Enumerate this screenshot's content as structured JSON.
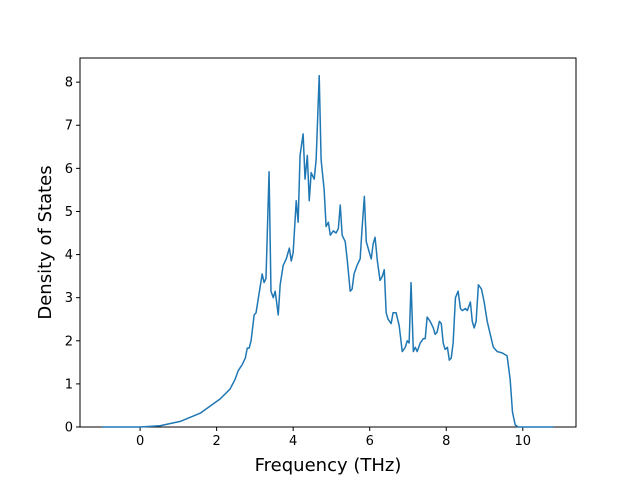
{
  "chart_data": {
    "type": "line",
    "x_label": "Frequency (THz)",
    "y_label": "Density of States",
    "series": [
      {
        "color": "#1f77b4",
        "x": [
          -0.99,
          0,
          0.52,
          1.05,
          1.57,
          2.09,
          2.35,
          2.48,
          2.56,
          2.67,
          2.75,
          2.8,
          2.85,
          2.9,
          2.98,
          3.03,
          3.11,
          3.19,
          3.24,
          3.29,
          3.37,
          3.42,
          3.48,
          3.53,
          3.61,
          3.66,
          3.74,
          3.82,
          3.9,
          3.95,
          4.0,
          4.08,
          4.13,
          4.18,
          4.26,
          4.31,
          4.37,
          4.42,
          4.47,
          4.55,
          4.6,
          4.68,
          4.73,
          4.81,
          4.86,
          4.92,
          4.97,
          5.05,
          5.12,
          5.18,
          5.23,
          5.28,
          5.36,
          5.41,
          5.49,
          5.54,
          5.59,
          5.67,
          5.75,
          5.8,
          5.86,
          5.91,
          5.99,
          6.04,
          6.09,
          6.14,
          6.2,
          6.27,
          6.33,
          6.38,
          6.43,
          6.48,
          6.56,
          6.61,
          6.69,
          6.77,
          6.85,
          6.93,
          6.98,
          7.03,
          7.08,
          7.14,
          7.19,
          7.24,
          7.32,
          7.4,
          7.45,
          7.5,
          7.58,
          7.66,
          7.71,
          7.76,
          7.82,
          7.87,
          7.92,
          7.97,
          8.03,
          8.08,
          8.13,
          8.18,
          8.24,
          8.31,
          8.37,
          8.42,
          8.5,
          8.55,
          8.63,
          8.68,
          8.73,
          8.78,
          8.84,
          8.92,
          8.99,
          9.07,
          9.15,
          9.23,
          9.33,
          9.46,
          9.59,
          9.67,
          9.73,
          9.8,
          9.88,
          10.8
        ],
        "values": [
          0,
          0,
          0.03,
          0.13,
          0.32,
          0.65,
          0.88,
          1.1,
          1.3,
          1.45,
          1.6,
          1.83,
          1.83,
          2.0,
          2.6,
          2.65,
          3.1,
          3.55,
          3.35,
          3.45,
          5.92,
          3.15,
          3.0,
          3.15,
          2.6,
          3.3,
          3.75,
          3.9,
          4.15,
          3.85,
          4.05,
          5.25,
          4.75,
          6.3,
          6.8,
          5.75,
          6.3,
          5.25,
          5.9,
          5.75,
          6.2,
          8.15,
          6.2,
          5.5,
          4.65,
          4.75,
          4.45,
          4.55,
          4.5,
          4.6,
          5.15,
          4.45,
          4.3,
          3.9,
          3.15,
          3.2,
          3.55,
          3.75,
          3.9,
          4.6,
          5.35,
          4.3,
          4.05,
          3.9,
          4.25,
          4.4,
          3.85,
          3.4,
          3.5,
          3.65,
          2.65,
          2.5,
          2.4,
          2.65,
          2.65,
          2.35,
          1.75,
          1.85,
          2.0,
          1.95,
          3.35,
          1.75,
          1.85,
          1.75,
          1.95,
          2.05,
          2.05,
          2.55,
          2.45,
          2.3,
          2.15,
          2.2,
          2.45,
          2.4,
          1.95,
          1.8,
          1.85,
          1.55,
          1.6,
          1.95,
          3.0,
          3.15,
          2.75,
          2.7,
          2.75,
          2.7,
          2.9,
          2.45,
          2.3,
          2.45,
          3.3,
          3.2,
          2.9,
          2.45,
          2.15,
          1.85,
          1.75,
          1.72,
          1.65,
          1.1,
          0.35,
          0.05,
          0,
          0
        ]
      }
    ],
    "xlim": [
      -1.57,
      11.39
    ],
    "xticks": [
      0,
      2,
      4,
      6,
      8,
      10
    ],
    "ylim": [
      0,
      8.56
    ],
    "yticks": [
      0,
      1,
      2,
      3,
      4,
      5,
      6,
      7,
      8
    ]
  }
}
